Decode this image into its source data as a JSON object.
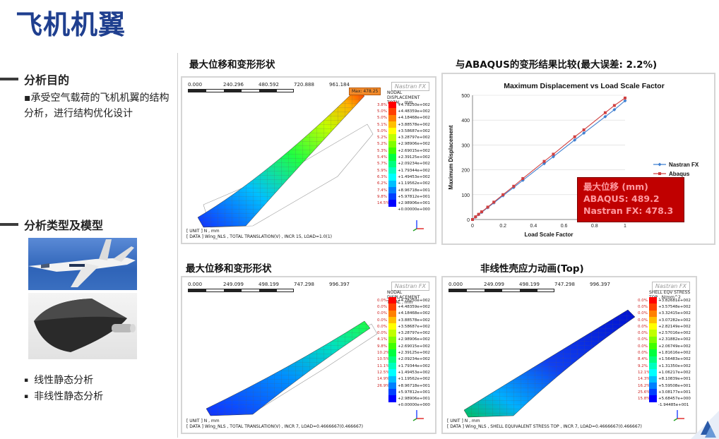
{
  "slide": {
    "title": "飞机机翼"
  },
  "left": {
    "purpose_heading": "分析目的",
    "purpose_text": "▪承受空气载荷的飞机机翼的结构分析，进行结构优化设计",
    "type_heading": "分析类型及模型",
    "types": [
      "线性静态分析",
      "非线性静态分析"
    ]
  },
  "panels": {
    "top_left": {
      "title": "最大位移和变形形状",
      "ruler": [
        "0.000",
        "240.296",
        "480.592",
        "720.888",
        "961.184"
      ],
      "brand": "Nastran FX",
      "max_label": "Max: 478.25",
      "legend_title": [
        "NODAL DISPLACEMENT",
        "TOTAL , mm"
      ],
      "legend_pct": [
        "3.8%",
        "5.0%",
        "5.0%",
        "5.1%",
        "5.0%",
        "5.2%",
        "5.2%",
        "5.3%",
        "5.4%",
        "5.7%",
        "5.9%",
        "6.3%",
        "6.2%",
        "7.4%",
        "9.8%",
        "14.5%"
      ],
      "legend_vals": [
        "+4.78250e+002",
        "+4.48359e+002",
        "+4.18468e+002",
        "+3.88578e+002",
        "+3.58687e+002",
        "+3.28797e+002",
        "+2.98906e+002",
        "+2.69015e+002",
        "+2.39125e+002",
        "+2.09234e+002",
        "+1.79344e+002",
        "+1.49453e+002",
        "+1.19562e+002",
        "+8.96718e+001",
        "+5.97812e+001",
        "+2.98906e+001",
        "+0.00000e+000"
      ],
      "footer": [
        "[ UNIT ]  N , mm",
        "[ DATA ]  Wing_NLS  ,  TOTAL TRANSLATION(V)  ,  INCR 15, LOAD=1.0(1)"
      ]
    },
    "top_right": {
      "title": "与ABAQUS的变形结果比较(最大误差: 2.2%)",
      "summary": [
        "最大位移 (mm)",
        "ABAQUS: 489.2",
        "Nastran FX: 478.3"
      ]
    },
    "bottom_left": {
      "title": "最大位移和变形形状",
      "ruler": [
        "0.000",
        "249.099",
        "498.199",
        "747.298",
        "996.397"
      ],
      "brand": "Nastran FX",
      "legend_title": [
        "NODAL DISPLACEMENT",
        "TOTAL , mm"
      ],
      "legend_pct": [
        "0.0%",
        "0.0%",
        "0.0%",
        "0.0%",
        "0.0%",
        "0.0%",
        "4.1%",
        "9.8%",
        "10.2%",
        "10.5%",
        "11.1%",
        "12.5%",
        "14.9%",
        "26.9%",
        "",
        ""
      ],
      "legend_vals": [
        "+4.78250e+002",
        "+4.48359e+002",
        "+4.18468e+002",
        "+3.88578e+002",
        "+3.58687e+002",
        "+3.28797e+002",
        "+2.98906e+002",
        "+2.69015e+002",
        "+2.39125e+002",
        "+2.09234e+002",
        "+1.79344e+002",
        "+1.49453e+002",
        "+1.19562e+002",
        "+8.96718e+001",
        "+5.97812e+001",
        "+2.98906e+001",
        "+0.00000e+000"
      ],
      "footer": [
        "[ UNIT ]  N , mm",
        "[ DATA ]  Wing_NLS  ,  TOTAL TRANSLATION(V)  ,  INCR 7, LOAD=0.4666667(0.466667)"
      ]
    },
    "bottom_right": {
      "title": "非线性壳应力动画(Top)",
      "ruler": [
        "0.000",
        "249.099",
        "498.199",
        "747.298",
        "996.397"
      ],
      "brand": "Nastran FX",
      "legend_title": [
        "SHELL EQV STRESS",
        "TOP , N/mm^2"
      ],
      "legend_pct": [
        "0.0%",
        "0.0%",
        "0.0%",
        "0.0%",
        "0.0%",
        "0.0%",
        "0.0%",
        "0.0%",
        "0.0%",
        "8.4%",
        "9.2%",
        "12.1%",
        "14.3%",
        "16.2%",
        "25.6%",
        "15.8%"
      ],
      "legend_vals": [
        "+3.82681e+002",
        "+3.57548e+002",
        "+3.32415e+002",
        "+3.07282e+002",
        "+2.82149e+002",
        "+2.57016e+002",
        "+2.31882e+002",
        "+2.06749e+002",
        "+1.81616e+002",
        "+1.56483e+002",
        "+1.31350e+002",
        "+1.06217e+002",
        "+8.10839e+001",
        "+5.59508e+001",
        "+3.08177e+001",
        "+5.68457e+000",
        "-1.94485e+001"
      ],
      "footer": [
        "[ UNIT ]  N , mm",
        "[ DATA ]  Wing_NLS  ,  SHELL EQUIVALENT STRESS TOP  ,  INCR 7, LOAD=0.4666667(0.466667)"
      ]
    }
  },
  "colors": {
    "title": "#1f3f8f",
    "legend_scale": [
      "#ff0000",
      "#ff4000",
      "#ff8000",
      "#ffbf00",
      "#ffff00",
      "#bfff00",
      "#80ff00",
      "#40ff00",
      "#00ff40",
      "#00ff80",
      "#00ffbf",
      "#00ffff",
      "#00bfff",
      "#0080ff",
      "#0040ff",
      "#0000ff"
    ],
    "nastran_series": "#3f7fd0",
    "abaqus_series": "#d04040"
  },
  "chart_data": {
    "type": "line",
    "title": "Maximum Displacement vs Load Scale Factor",
    "xlabel": "Load Scale Factor",
    "ylabel": "Maximum Displacement",
    "xlim": [
      0,
      1.0
    ],
    "ylim": [
      0,
      500
    ],
    "xticks": [
      "0",
      "0.2",
      "0.4",
      "0.6",
      "0.8",
      "1"
    ],
    "yticks": [
      "0",
      "100",
      "200",
      "300",
      "400",
      "500"
    ],
    "legend_position": "right",
    "grid": true,
    "series": [
      {
        "name": "Nastran FX",
        "x": [
          0.0,
          0.02,
          0.04,
          0.06,
          0.1,
          0.14,
          0.2,
          0.27,
          0.33,
          0.47,
          0.53,
          0.67,
          0.73,
          0.87,
          0.93,
          1.0
        ],
        "y": [
          0,
          10,
          20,
          29,
          48,
          67,
          96,
          129,
          158,
          225,
          253,
          320,
          348,
          414,
          442,
          478
        ]
      },
      {
        "name": "Abaqus",
        "x": [
          0.0,
          0.02,
          0.04,
          0.06,
          0.1,
          0.14,
          0.2,
          0.27,
          0.33,
          0.47,
          0.53,
          0.67,
          0.73,
          0.87,
          0.93,
          1.0
        ],
        "y": [
          0,
          11,
          21,
          31,
          50,
          70,
          100,
          134,
          165,
          234,
          263,
          333,
          361,
          430,
          459,
          489
        ]
      }
    ]
  }
}
